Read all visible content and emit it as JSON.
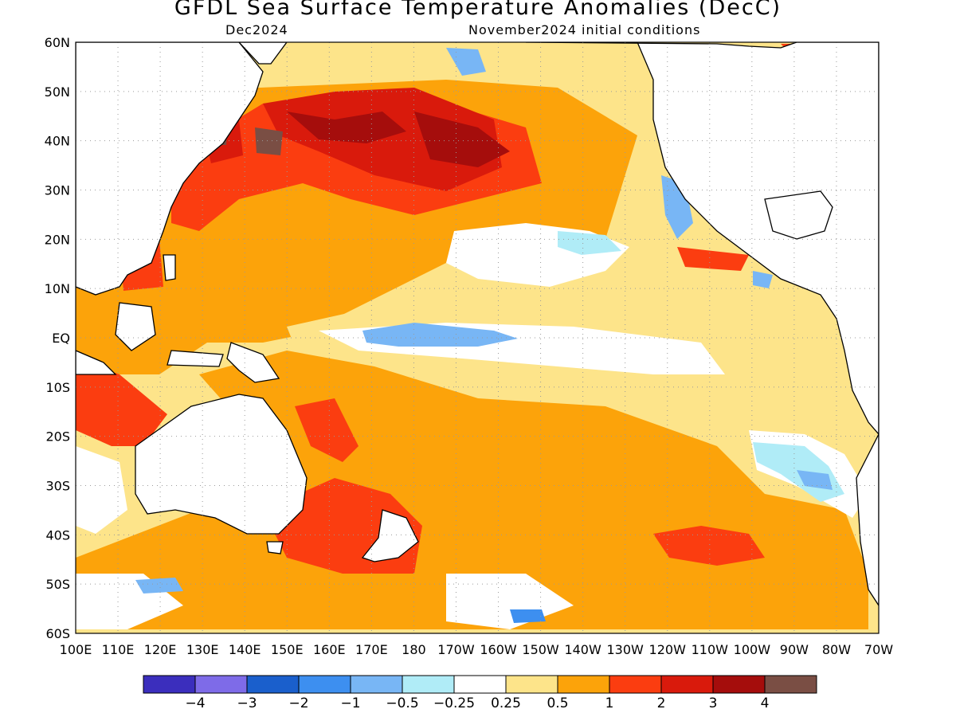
{
  "title": "GFDL Sea Surface Temperature Anomalies (DecC)",
  "subtitle_left": "Dec2024",
  "subtitle_right": "November2024 initial conditions",
  "lat_labels": [
    "60N",
    "50N",
    "40N",
    "30N",
    "20N",
    "10N",
    "EQ",
    "10S",
    "20S",
    "30S",
    "40S",
    "50S",
    "60S"
  ],
  "lon_labels": [
    "100E",
    "110E",
    "120E",
    "130E",
    "140E",
    "150E",
    "160E",
    "170E",
    "180",
    "170W",
    "160W",
    "150W",
    "140W",
    "130W",
    "120W",
    "110W",
    "100W",
    "90W",
    "80W",
    "70W"
  ],
  "colorbar": {
    "colors": [
      "#3b2ebd",
      "#7e6be8",
      "#1a5fcc",
      "#3d8ff0",
      "#78b6f5",
      "#b0ecf7",
      "#ffffff",
      "#fde48a",
      "#fca30a",
      "#fb3d10",
      "#d91a0c",
      "#a50d0c",
      "#7a4e44"
    ],
    "labels": [
      "−4",
      "−3",
      "−2",
      "−1",
      "−0.5",
      "−0.25",
      "0.25",
      "0.5",
      "1",
      "2",
      "3",
      "4"
    ]
  },
  "legend_units": "DecC",
  "map": {
    "projection": "equirectangular",
    "lon_range": [
      "100E",
      "70W"
    ],
    "lat_range": [
      "60S",
      "60N"
    ],
    "dominant_pattern": "warm anomalies across most of Pacific; cool tongue along equator 170E-150W; strongest warmth in NW Pacific near 40N 150E-160W"
  }
}
